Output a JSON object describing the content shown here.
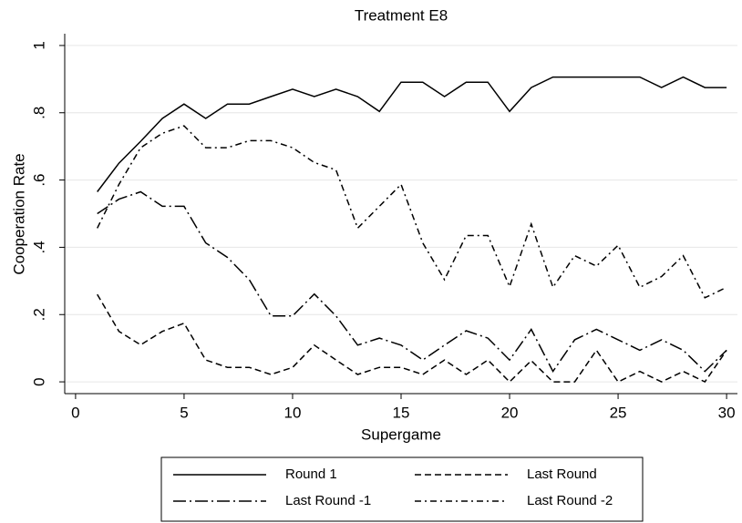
{
  "chart_data": {
    "type": "line",
    "title": "Treatment E8",
    "xlabel": "Supergame",
    "ylabel": "Cooperation Rate",
    "x": [
      1,
      2,
      3,
      4,
      5,
      6,
      7,
      8,
      9,
      10,
      11,
      12,
      13,
      14,
      15,
      16,
      17,
      18,
      19,
      20,
      21,
      22,
      23,
      24,
      25,
      26,
      27,
      28,
      29,
      30
    ],
    "series": [
      {
        "name": "Round 1",
        "color": "#000000",
        "dash": "solid",
        "values": [
          0.565,
          0.65,
          0.715,
          0.783,
          0.826,
          0.783,
          0.826,
          0.826,
          0.848,
          0.87,
          0.848,
          0.87,
          0.848,
          0.804,
          0.891,
          0.891,
          0.848,
          0.891,
          0.891,
          0.804,
          0.875,
          0.906,
          0.906,
          0.906,
          0.906,
          0.906,
          0.875,
          0.906,
          0.875,
          0.875
        ]
      },
      {
        "name": "Last Round",
        "color": "#000000",
        "dash": "dash",
        "values": [
          0.26,
          0.15,
          0.11,
          0.15,
          0.174,
          0.065,
          0.043,
          0.043,
          0.022,
          0.043,
          0.109,
          0.065,
          0.022,
          0.043,
          0.043,
          0.022,
          0.065,
          0.022,
          0.065,
          0,
          0.063,
          0,
          0,
          0.094,
          0,
          0.031,
          0,
          0.031,
          0,
          0.094
        ]
      },
      {
        "name": "Last Round -1",
        "color": "#000000",
        "dash": "longdashdot",
        "values": [
          0.5,
          0.543,
          0.565,
          0.522,
          0.522,
          0.413,
          0.37,
          0.304,
          0.196,
          0.196,
          0.261,
          0.196,
          0.109,
          0.13,
          0.109,
          0.065,
          0.109,
          0.152,
          0.13,
          0.065,
          0.156,
          0.031,
          0.125,
          0.156,
          0.125,
          0.094,
          0.125,
          0.094,
          0.031,
          0.094
        ]
      },
      {
        "name": "Last Round -2",
        "color": "#000000",
        "dash": "dashdot",
        "values": [
          0.457,
          0.587,
          0.696,
          0.739,
          0.761,
          0.696,
          0.696,
          0.717,
          0.717,
          0.696,
          0.652,
          0.63,
          0.457,
          0.522,
          0.587,
          0.413,
          0.304,
          0.435,
          0.435,
          0.283,
          0.469,
          0.281,
          0.375,
          0.344,
          0.406,
          0.281,
          0.313,
          0.375,
          0.25,
          0.281
        ]
      }
    ],
    "xlim": [
      -0.5,
      30.5
    ],
    "xticks": [
      0,
      5,
      10,
      15,
      20,
      25,
      30
    ],
    "ylim": [
      -0.035,
      1.035
    ],
    "yticks": [
      0,
      {
        "value": 0.2,
        "label": ".2"
      },
      {
        "value": 0.4,
        "label": ".4"
      },
      {
        "value": 0.6,
        "label": ".6"
      },
      {
        "value": 0.8,
        "label": ".8"
      },
      1
    ],
    "grid": true,
    "legend": "bottom"
  }
}
